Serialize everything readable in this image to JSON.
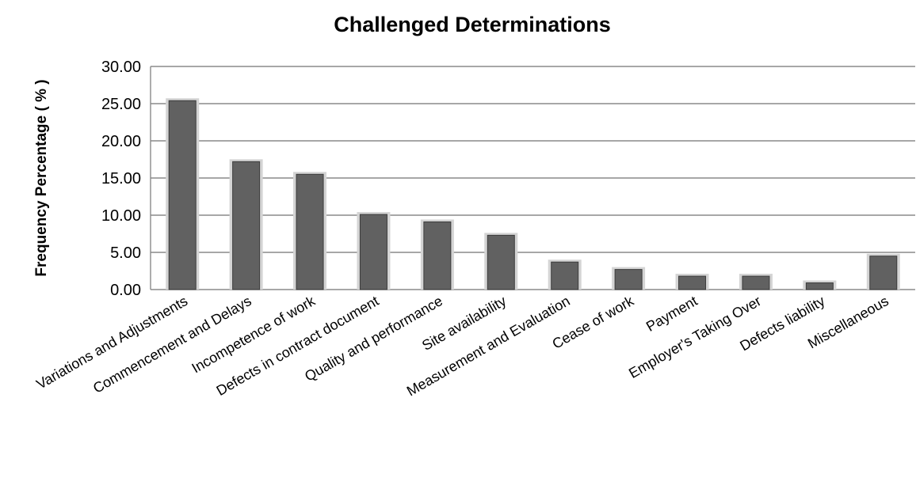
{
  "chart_data": {
    "type": "bar",
    "title": "Challenged Determinations",
    "xlabel": "",
    "ylabel": "Frequency Percentage ( % )",
    "ylim": [
      0,
      30
    ],
    "yticks": [
      "0.00",
      "5.00",
      "10.00",
      "15.00",
      "20.00",
      "25.00",
      "30.00"
    ],
    "grid": true,
    "categories": [
      "Variations and Adjustments",
      "Commencement and Delays",
      "Incompetence of work",
      "Defects in contract document",
      "Quality and performance",
      "Site availability",
      "Measurement and Evaluation",
      "Cease of work",
      "Payment",
      "Employer's Taking Over",
      "Defects liability",
      "Miscellaneous"
    ],
    "values": [
      25.4,
      17.2,
      15.5,
      10.1,
      9.1,
      7.3,
      3.7,
      2.7,
      1.8,
      1.8,
      0.9,
      4.5
    ],
    "bar_color": "#616161"
  }
}
